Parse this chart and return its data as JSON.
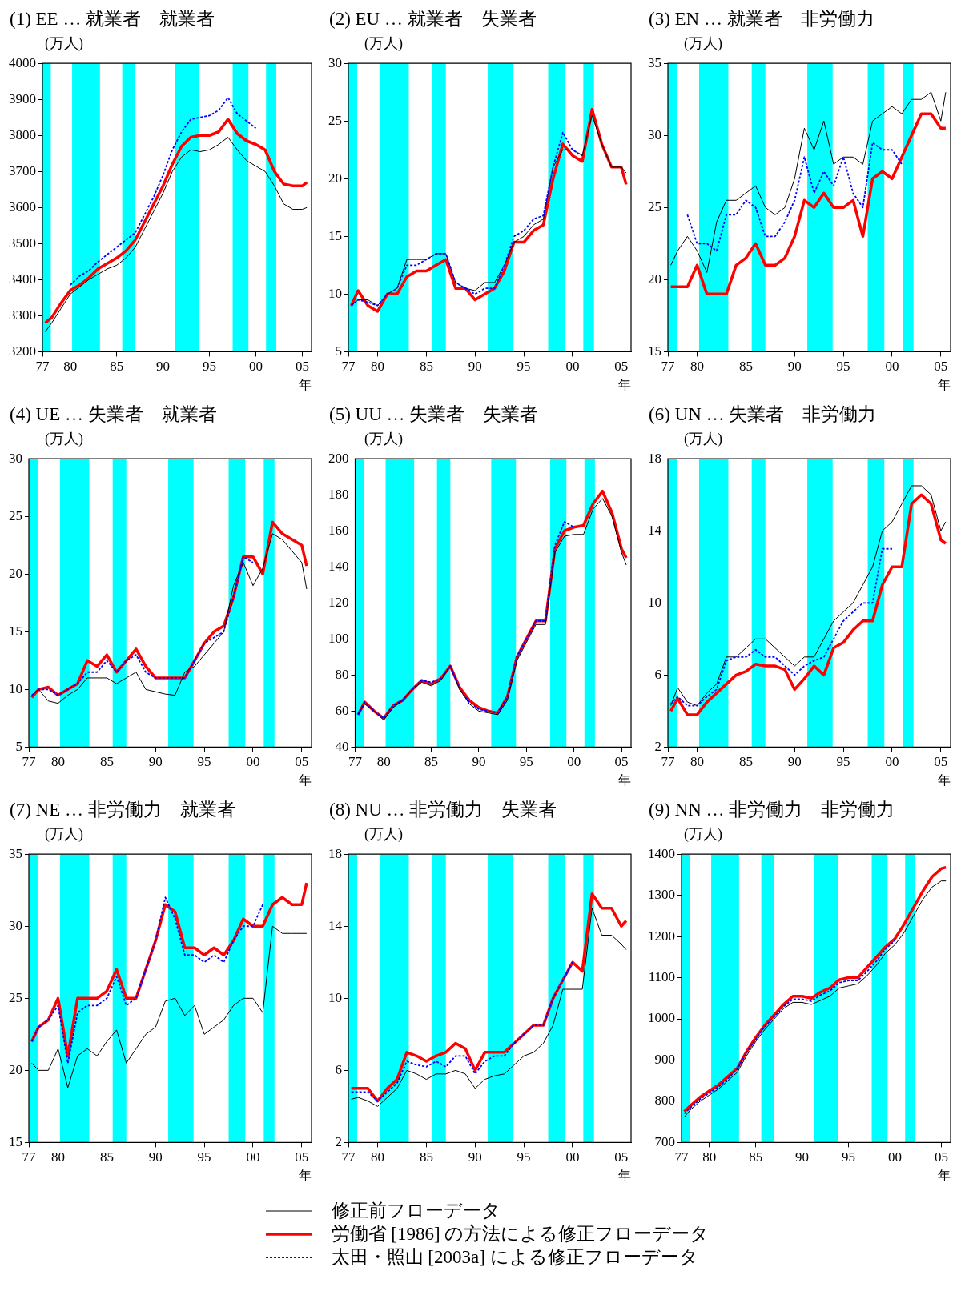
{
  "chart_data": [
    {
      "type": "line",
      "title": "(1) EE … 就業者　就業者",
      "ylabel": "(万人)",
      "xlabel": "年",
      "marker": "none",
      "legend": "bottom",
      "x": [
        1977.3,
        1978,
        1979,
        1980,
        1981,
        1982,
        1983,
        1984,
        1985,
        1986,
        1987,
        1988,
        1989,
        1990,
        1991,
        1992,
        1993,
        1994,
        1995,
        1996,
        1997,
        1998,
        1999,
        2000,
        2001,
        2002,
        2003,
        2004,
        2005,
        2005.5
      ],
      "xlim": [
        1977,
        2006
      ],
      "xticks": [
        {
          "value": 1977,
          "label": "77"
        },
        {
          "value": 1980,
          "label": "80"
        },
        {
          "value": 1985,
          "label": "85"
        },
        {
          "value": 1990,
          "label": "90"
        },
        {
          "value": 1995,
          "label": "95"
        },
        {
          "value": 2000,
          "label": "00"
        },
        {
          "value": 2005,
          "label": "05"
        }
      ],
      "ylim": [
        3200,
        4000
      ],
      "yticks": [
        3200,
        3300,
        3400,
        3500,
        3600,
        3700,
        3800,
        3900,
        4000
      ],
      "bands": [
        {
          "axis": "x",
          "from": 1977,
          "to": 1977.9,
          "color": "#00ffff"
        },
        {
          "axis": "x",
          "from": 1980.2,
          "to": 1983.2,
          "color": "#00ffff"
        },
        {
          "axis": "x",
          "from": 1985.6,
          "to": 1987,
          "color": "#00ffff"
        },
        {
          "axis": "x",
          "from": 1991.3,
          "to": 1993.9,
          "color": "#00ffff"
        },
        {
          "axis": "x",
          "from": 1997.5,
          "to": 1999.2,
          "color": "#00ffff"
        },
        {
          "axis": "x",
          "from": 2001.1,
          "to": 2002.2,
          "color": "#00ffff"
        }
      ],
      "series": [
        {
          "name": "修正前フローデータ",
          "color": "#000000",
          "line_style": "solid",
          "values": [
            3255,
            3280,
            3320,
            3360,
            3380,
            3400,
            3415,
            3430,
            3440,
            3460,
            3490,
            3540,
            3590,
            3640,
            3700,
            3740,
            3760,
            3755,
            3760,
            3775,
            3795,
            3760,
            3730,
            3715,
            3700,
            3660,
            3610,
            3595,
            3595,
            3600
          ]
        },
        {
          "name": "労働省 [1986] の方法による修正フローデータ",
          "color": "#ff0000",
          "line_style": "solid",
          "values": [
            3280,
            3295,
            3335,
            3370,
            3385,
            3405,
            3430,
            3445,
            3460,
            3480,
            3510,
            3560,
            3610,
            3660,
            3720,
            3770,
            3795,
            3800,
            3800,
            3810,
            3845,
            3805,
            3785,
            3775,
            3760,
            3700,
            3665,
            3660,
            3660,
            3670
          ]
        },
        {
          "name": "太田・照山 [2003a] による修正フローデータ",
          "color": "#0000ff",
          "line_style": "dashed",
          "values": [
            null,
            null,
            null,
            3385,
            3410,
            3425,
            3450,
            3470,
            3490,
            3510,
            3530,
            3580,
            3630,
            3690,
            3760,
            3810,
            3845,
            3850,
            3855,
            3870,
            3905,
            3860,
            3840,
            3820,
            null,
            null,
            null,
            null,
            null,
            null
          ]
        }
      ]
    },
    {
      "type": "line",
      "title": "(2) EU … 就業者　失業者",
      "ylabel": "(万人)",
      "xlabel": "年",
      "marker": "none",
      "x": [
        1977.3,
        1978,
        1979,
        1980,
        1981,
        1982,
        1983,
        1984,
        1985,
        1986,
        1987,
        1988,
        1989,
        1990,
        1991,
        1992,
        1993,
        1994,
        1995,
        1996,
        1997,
        1998,
        1999,
        2000,
        2001,
        2002,
        2003,
        2004,
        2005,
        2005.5
      ],
      "xlim": [
        1977,
        2006
      ],
      "xticks": [
        {
          "value": 1977,
          "label": "77"
        },
        {
          "value": 1980,
          "label": "80"
        },
        {
          "value": 1985,
          "label": "85"
        },
        {
          "value": 1990,
          "label": "90"
        },
        {
          "value": 1995,
          "label": "95"
        },
        {
          "value": 2000,
          "label": "00"
        },
        {
          "value": 2005,
          "label": "05"
        }
      ],
      "ylim": [
        5,
        30
      ],
      "yticks": [
        5,
        10,
        15,
        20,
        25,
        30
      ],
      "bands": [
        {
          "axis": "x",
          "from": 1977,
          "to": 1977.9,
          "color": "#00ffff"
        },
        {
          "axis": "x",
          "from": 1980.2,
          "to": 1983.2,
          "color": "#00ffff"
        },
        {
          "axis": "x",
          "from": 1985.6,
          "to": 1987,
          "color": "#00ffff"
        },
        {
          "axis": "x",
          "from": 1991.3,
          "to": 1993.9,
          "color": "#00ffff"
        },
        {
          "axis": "x",
          "from": 1997.5,
          "to": 1999.2,
          "color": "#00ffff"
        },
        {
          "axis": "x",
          "from": 2001.1,
          "to": 2002.2,
          "color": "#00ffff"
        }
      ],
      "series": [
        {
          "color": "#000000",
          "line_style": "solid",
          "values": [
            9,
            9.5,
            9.5,
            9,
            10,
            10.5,
            13,
            13,
            13,
            13.5,
            13.5,
            11,
            10.5,
            10.3,
            11,
            11,
            12.5,
            14.5,
            15,
            16,
            16.5,
            21,
            22.5,
            22.5,
            22,
            25.5,
            23,
            21,
            21,
            20.5
          ]
        },
        {
          "color": "#ff0000",
          "line_style": "solid",
          "values": [
            9,
            10.3,
            9,
            8.5,
            10,
            10,
            11.5,
            12,
            12,
            12.5,
            13,
            10.5,
            10.5,
            9.5,
            10,
            10.5,
            12,
            14.5,
            14.5,
            15.5,
            16,
            20,
            23,
            22,
            21.5,
            26,
            23,
            21,
            21,
            19.5
          ]
        },
        {
          "color": "#0000ff",
          "line_style": "dashed",
          "values": [
            9,
            9.5,
            9.3,
            9,
            10,
            10.5,
            12.5,
            12.5,
            13,
            13.5,
            13.5,
            11,
            10.5,
            10,
            10.5,
            10.5,
            12.5,
            15,
            15.5,
            16.5,
            16.8,
            21,
            24,
            22.5,
            22,
            null,
            null,
            null,
            null,
            null
          ]
        }
      ]
    },
    {
      "type": "line",
      "title": "(3) EN … 就業者　非労働力",
      "ylabel": "(万人)",
      "xlabel": "年",
      "marker": "none",
      "x": [
        1977.3,
        1978,
        1979,
        1980,
        1981,
        1982,
        1983,
        1984,
        1985,
        1986,
        1987,
        1988,
        1989,
        1990,
        1991,
        1992,
        1993,
        1994,
        1995,
        1996,
        1997,
        1998,
        1999,
        2000,
        2001,
        2002,
        2003,
        2004,
        2005,
        2005.5
      ],
      "xlim": [
        1977,
        2006
      ],
      "xticks": [
        {
          "value": 1977,
          "label": "77"
        },
        {
          "value": 1980,
          "label": "80"
        },
        {
          "value": 1985,
          "label": "85"
        },
        {
          "value": 1990,
          "label": "90"
        },
        {
          "value": 1995,
          "label": "95"
        },
        {
          "value": 2000,
          "label": "00"
        },
        {
          "value": 2005,
          "label": "05"
        }
      ],
      "ylim": [
        15,
        35
      ],
      "yticks": [
        15,
        20,
        25,
        30,
        35
      ],
      "bands": [
        {
          "axis": "x",
          "from": 1977,
          "to": 1977.9,
          "color": "#00ffff"
        },
        {
          "axis": "x",
          "from": 1980.2,
          "to": 1983.2,
          "color": "#00ffff"
        },
        {
          "axis": "x",
          "from": 1985.6,
          "to": 1987,
          "color": "#00ffff"
        },
        {
          "axis": "x",
          "from": 1991.3,
          "to": 1993.9,
          "color": "#00ffff"
        },
        {
          "axis": "x",
          "from": 1997.5,
          "to": 1999.2,
          "color": "#00ffff"
        },
        {
          "axis": "x",
          "from": 2001.1,
          "to": 2002.2,
          "color": "#00ffff"
        }
      ],
      "series": [
        {
          "color": "#000000",
          "line_style": "solid",
          "values": [
            21,
            22,
            23,
            22,
            20.5,
            24,
            25.5,
            25.5,
            26,
            26.5,
            25,
            24.5,
            25,
            27,
            30.5,
            29,
            31,
            28,
            28.5,
            28.5,
            28,
            31,
            31.5,
            32,
            31.5,
            32.5,
            32.5,
            33,
            31,
            33
          ]
        },
        {
          "color": "#ff0000",
          "line_style": "solid",
          "values": [
            19.5,
            19.5,
            19.5,
            21,
            19,
            19,
            19,
            21,
            21.5,
            22.5,
            21,
            21,
            21.5,
            23,
            25.5,
            25,
            26,
            25,
            25,
            25.5,
            23,
            27,
            27.5,
            27,
            28.5,
            30,
            31.5,
            31.5,
            30.5,
            30.5
          ]
        },
        {
          "color": "#0000ff",
          "line_style": "dashed",
          "values": [
            null,
            null,
            24.5,
            22.5,
            22.5,
            22,
            24.5,
            24.5,
            25.5,
            25,
            23,
            23,
            24,
            25.5,
            28.5,
            26,
            27.5,
            26.5,
            28.5,
            26,
            25,
            29.5,
            29,
            29,
            28,
            null,
            null,
            null,
            null,
            null
          ]
        }
      ]
    },
    {
      "type": "line",
      "title": "(4) UE … 失業者　就業者",
      "ylabel": "(万人)",
      "xlabel": "年",
      "marker": "none",
      "x": [
        1977.3,
        1978,
        1979,
        1980,
        1981,
        1982,
        1983,
        1984,
        1985,
        1986,
        1987,
        1988,
        1989,
        1990,
        1991,
        1992,
        1993,
        1994,
        1995,
        1996,
        1997,
        1998,
        1999,
        2000,
        2001,
        2002,
        2003,
        2004,
        2005,
        2005.5
      ],
      "xlim": [
        1977,
        2006
      ],
      "xticks": [
        {
          "value": 1977,
          "label": "77"
        },
        {
          "value": 1980,
          "label": "80"
        },
        {
          "value": 1985,
          "label": "85"
        },
        {
          "value": 1990,
          "label": "90"
        },
        {
          "value": 1995,
          "label": "95"
        },
        {
          "value": 2000,
          "label": "00"
        },
        {
          "value": 2005,
          "label": "05"
        }
      ],
      "ylim": [
        5,
        30
      ],
      "yticks": [
        5,
        10,
        15,
        20,
        25,
        30
      ],
      "bands": [
        {
          "axis": "x",
          "from": 1977,
          "to": 1977.9,
          "color": "#00ffff"
        },
        {
          "axis": "x",
          "from": 1980.2,
          "to": 1983.2,
          "color": "#00ffff"
        },
        {
          "axis": "x",
          "from": 1985.6,
          "to": 1987,
          "color": "#00ffff"
        },
        {
          "axis": "x",
          "from": 1991.3,
          "to": 1993.9,
          "color": "#00ffff"
        },
        {
          "axis": "x",
          "from": 1997.5,
          "to": 1999.2,
          "color": "#00ffff"
        },
        {
          "axis": "x",
          "from": 2001.1,
          "to": 2002.2,
          "color": "#00ffff"
        }
      ],
      "series": [
        {
          "color": "#000000",
          "line_style": "solid",
          "values": [
            9.5,
            10,
            9,
            8.8,
            9.5,
            10,
            11,
            11,
            11,
            10.5,
            11,
            11.5,
            10,
            9.8,
            9.6,
            9.5,
            11.5,
            12,
            13,
            14,
            15,
            19,
            21,
            19,
            20.5,
            23.5,
            23,
            22,
            21,
            18.7
          ]
        },
        {
          "color": "#ff0000",
          "line_style": "solid",
          "values": [
            9.3,
            10,
            10.2,
            9.5,
            10,
            10.5,
            12.5,
            12,
            13,
            11.5,
            12.5,
            13.5,
            12,
            11,
            11,
            11,
            11,
            12.5,
            14,
            15,
            15.5,
            18,
            21.5,
            21.5,
            20,
            24.5,
            23.5,
            23,
            22.5,
            20.7
          ]
        },
        {
          "color": "#0000ff",
          "line_style": "dashed",
          "values": [
            9.5,
            10,
            10,
            9.5,
            10,
            10.5,
            11.5,
            11.5,
            12.5,
            11.5,
            12.5,
            13,
            11.5,
            11,
            11,
            11,
            11,
            12.5,
            14,
            14.5,
            15,
            18,
            21.5,
            21,
            null,
            null,
            null,
            null,
            null,
            null
          ]
        }
      ]
    },
    {
      "type": "line",
      "title": "(5) UU … 失業者　失業者",
      "ylabel": "(万人)",
      "xlabel": "年",
      "marker": "none",
      "x": [
        1977.3,
        1978,
        1979,
        1980,
        1981,
        1982,
        1983,
        1984,
        1985,
        1986,
        1987,
        1988,
        1989,
        1990,
        1991,
        1992,
        1993,
        1994,
        1995,
        1996,
        1997,
        1998,
        1999,
        2000,
        2001,
        2002,
        2003,
        2004,
        2005,
        2005.5
      ],
      "xlim": [
        1977,
        2006
      ],
      "xticks": [
        {
          "value": 1977,
          "label": "77"
        },
        {
          "value": 1980,
          "label": "80"
        },
        {
          "value": 1985,
          "label": "85"
        },
        {
          "value": 1990,
          "label": "90"
        },
        {
          "value": 1995,
          "label": "95"
        },
        {
          "value": 2000,
          "label": "00"
        },
        {
          "value": 2005,
          "label": "05"
        }
      ],
      "ylim": [
        40,
        200
      ],
      "yticks": [
        40,
        60,
        80,
        100,
        120,
        140,
        160,
        180,
        200
      ],
      "bands": [
        {
          "axis": "x",
          "from": 1977,
          "to": 1977.9,
          "color": "#00ffff"
        },
        {
          "axis": "x",
          "from": 1980.2,
          "to": 1983.2,
          "color": "#00ffff"
        },
        {
          "axis": "x",
          "from": 1985.6,
          "to": 1987,
          "color": "#00ffff"
        },
        {
          "axis": "x",
          "from": 1991.3,
          "to": 1993.9,
          "color": "#00ffff"
        },
        {
          "axis": "x",
          "from": 1997.5,
          "to": 1999.2,
          "color": "#00ffff"
        },
        {
          "axis": "x",
          "from": 2001.1,
          "to": 2002.2,
          "color": "#00ffff"
        }
      ],
      "series": [
        {
          "color": "#000000",
          "line_style": "solid",
          "values": [
            58,
            64,
            60,
            55,
            62,
            66,
            72,
            76,
            74,
            77,
            85,
            72,
            64,
            60,
            59,
            58,
            66,
            88,
            98,
            108,
            108,
            148,
            157,
            158,
            158,
            172,
            178,
            168,
            148,
            141
          ]
        },
        {
          "color": "#ff0000",
          "line_style": "solid",
          "values": [
            58,
            65,
            60,
            56,
            63,
            66,
            72,
            77,
            75,
            78,
            85,
            73,
            66,
            62,
            60,
            59,
            68,
            90,
            100,
            110,
            110,
            150,
            160,
            162,
            163,
            175,
            182,
            170,
            150,
            145
          ]
        },
        {
          "color": "#0000ff",
          "line_style": "dashed",
          "values": [
            58,
            65,
            60,
            56,
            63,
            66,
            72,
            77,
            76,
            78,
            85,
            72,
            65,
            61,
            60,
            59,
            68,
            90,
            100,
            110,
            110,
            152,
            165,
            162,
            null,
            null,
            null,
            null,
            null,
            null
          ]
        }
      ]
    },
    {
      "type": "line",
      "title": "(6) UN … 失業者　非労働力",
      "ylabel": "(万人)",
      "xlabel": "年",
      "marker": "none",
      "x": [
        1977.3,
        1978,
        1979,
        1980,
        1981,
        1982,
        1983,
        1984,
        1985,
        1986,
        1987,
        1988,
        1989,
        1990,
        1991,
        1992,
        1993,
        1994,
        1995,
        1996,
        1997,
        1998,
        1999,
        2000,
        2001,
        2002,
        2003,
        2004,
        2005,
        2005.5
      ],
      "xlim": [
        1977,
        2006
      ],
      "xticks": [
        {
          "value": 1977,
          "label": "77"
        },
        {
          "value": 1980,
          "label": "80"
        },
        {
          "value": 1985,
          "label": "85"
        },
        {
          "value": 1990,
          "label": "90"
        },
        {
          "value": 1995,
          "label": "95"
        },
        {
          "value": 2000,
          "label": "00"
        },
        {
          "value": 2005,
          "label": "05"
        }
      ],
      "ylim": [
        2,
        18
      ],
      "yticks": [
        2,
        6,
        10,
        14,
        18
      ],
      "bands": [
        {
          "axis": "x",
          "from": 1977,
          "to": 1977.9,
          "color": "#00ffff"
        },
        {
          "axis": "x",
          "from": 1980.2,
          "to": 1983.2,
          "color": "#00ffff"
        },
        {
          "axis": "x",
          "from": 1985.6,
          "to": 1987,
          "color": "#00ffff"
        },
        {
          "axis": "x",
          "from": 1991.3,
          "to": 1993.9,
          "color": "#00ffff"
        },
        {
          "axis": "x",
          "from": 1997.5,
          "to": 1999.2,
          "color": "#00ffff"
        },
        {
          "axis": "x",
          "from": 2001.1,
          "to": 2002.2,
          "color": "#00ffff"
        }
      ],
      "series": [
        {
          "color": "#000000",
          "line_style": "solid",
          "values": [
            4.3,
            5.3,
            4.5,
            4.3,
            5,
            5.5,
            7,
            7,
            7.5,
            8,
            8,
            7.5,
            7,
            6.5,
            7,
            7,
            8,
            9,
            9.5,
            10,
            11,
            12,
            14,
            14.5,
            15.5,
            16.5,
            16.5,
            16,
            14,
            14.5
          ]
        },
        {
          "color": "#ff0000",
          "line_style": "solid",
          "values": [
            4,
            4.7,
            3.8,
            3.8,
            4.5,
            5,
            5.5,
            6,
            6.2,
            6.6,
            6.5,
            6.5,
            6.3,
            5.2,
            5.8,
            6.5,
            6,
            7.5,
            7.8,
            8.5,
            9,
            9,
            11,
            12,
            12,
            15.5,
            16,
            15.5,
            13.5,
            13.3
          ]
        },
        {
          "color": "#0000ff",
          "line_style": "dashed",
          "values": [
            4.4,
            4.8,
            4.3,
            4.3,
            4.8,
            5.2,
            6.8,
            7,
            7,
            7.4,
            7,
            7,
            6.5,
            6,
            6.5,
            6.8,
            7,
            8,
            9,
            9.5,
            10,
            10,
            13,
            13,
            null,
            null,
            null,
            null,
            null,
            null
          ]
        }
      ]
    },
    {
      "type": "line",
      "title": "(7) NE … 非労働力　就業者",
      "ylabel": "(万人)",
      "xlabel": "年",
      "marker": "none",
      "x": [
        1977.3,
        1978,
        1979,
        1980,
        1981,
        1982,
        1983,
        1984,
        1985,
        1986,
        1987,
        1988,
        1989,
        1990,
        1991,
        1992,
        1993,
        1994,
        1995,
        1996,
        1997,
        1998,
        1999,
        2000,
        2001,
        2002,
        2003,
        2004,
        2005,
        2005.5
      ],
      "xlim": [
        1977,
        2006
      ],
      "xticks": [
        {
          "value": 1977,
          "label": "77"
        },
        {
          "value": 1980,
          "label": "80"
        },
        {
          "value": 1985,
          "label": "85"
        },
        {
          "value": 1990,
          "label": "90"
        },
        {
          "value": 1995,
          "label": "95"
        },
        {
          "value": 2000,
          "label": "00"
        },
        {
          "value": 2005,
          "label": "05"
        }
      ],
      "ylim": [
        15,
        35
      ],
      "yticks": [
        15,
        20,
        25,
        30,
        35
      ],
      "bands": [
        {
          "axis": "x",
          "from": 1977,
          "to": 1977.9,
          "color": "#00ffff"
        },
        {
          "axis": "x",
          "from": 1980.2,
          "to": 1983.2,
          "color": "#00ffff"
        },
        {
          "axis": "x",
          "from": 1985.6,
          "to": 1987,
          "color": "#00ffff"
        },
        {
          "axis": "x",
          "from": 1991.3,
          "to": 1993.9,
          "color": "#00ffff"
        },
        {
          "axis": "x",
          "from": 1997.5,
          "to": 1999.2,
          "color": "#00ffff"
        },
        {
          "axis": "x",
          "from": 2001.1,
          "to": 2002.2,
          "color": "#00ffff"
        }
      ],
      "series": [
        {
          "color": "#000000",
          "line_style": "solid",
          "values": [
            20.5,
            20,
            20,
            21.5,
            18.8,
            21,
            21.5,
            21,
            22,
            22.8,
            20.5,
            21.5,
            22.5,
            23,
            24.8,
            25,
            23.8,
            24.5,
            22.5,
            23,
            23.5,
            24.5,
            25,
            25,
            24,
            30,
            29.5,
            29.5,
            29.5,
            29.5
          ]
        },
        {
          "color": "#ff0000",
          "line_style": "solid",
          "values": [
            22,
            23,
            23.5,
            25,
            21,
            25,
            25,
            25,
            25.5,
            27,
            25,
            25,
            27,
            29,
            31.5,
            31,
            28.5,
            28.5,
            28,
            28.5,
            28,
            29,
            30.5,
            30,
            30,
            31.5,
            32,
            31.5,
            31.5,
            33
          ]
        },
        {
          "color": "#0000ff",
          "line_style": "dashed",
          "values": [
            22,
            23,
            23.5,
            24.5,
            20.5,
            24,
            24.5,
            24.5,
            25,
            26.5,
            24.5,
            25,
            27,
            29,
            32,
            30.5,
            28,
            28,
            27.5,
            28,
            27.5,
            29,
            30,
            30,
            31.5,
            null,
            null,
            null,
            null,
            null
          ]
        }
      ]
    },
    {
      "type": "line",
      "title": "(8) NU … 非労働力　失業者",
      "ylabel": "(万人)",
      "xlabel": "年",
      "marker": "none",
      "x": [
        1977.3,
        1978,
        1979,
        1980,
        1981,
        1982,
        1983,
        1984,
        1985,
        1986,
        1987,
        1988,
        1989,
        1990,
        1991,
        1992,
        1993,
        1994,
        1995,
        1996,
        1997,
        1998,
        1999,
        2000,
        2001,
        2002,
        2003,
        2004,
        2005,
        2005.5
      ],
      "xlim": [
        1977,
        2006
      ],
      "xticks": [
        {
          "value": 1977,
          "label": "77"
        },
        {
          "value": 1980,
          "label": "80"
        },
        {
          "value": 1985,
          "label": "85"
        },
        {
          "value": 1990,
          "label": "90"
        },
        {
          "value": 1995,
          "label": "95"
        },
        {
          "value": 2000,
          "label": "00"
        },
        {
          "value": 2005,
          "label": "05"
        }
      ],
      "ylim": [
        2,
        18
      ],
      "yticks": [
        2,
        6,
        10,
        14,
        18
      ],
      "bands": [
        {
          "axis": "x",
          "from": 1977,
          "to": 1977.9,
          "color": "#00ffff"
        },
        {
          "axis": "x",
          "from": 1980.2,
          "to": 1983.2,
          "color": "#00ffff"
        },
        {
          "axis": "x",
          "from": 1985.6,
          "to": 1987,
          "color": "#00ffff"
        },
        {
          "axis": "x",
          "from": 1991.3,
          "to": 1993.9,
          "color": "#00ffff"
        },
        {
          "axis": "x",
          "from": 1997.5,
          "to": 1999.2,
          "color": "#00ffff"
        },
        {
          "axis": "x",
          "from": 2001.1,
          "to": 2002.2,
          "color": "#00ffff"
        }
      ],
      "series": [
        {
          "color": "#000000",
          "line_style": "solid",
          "values": [
            4.4,
            4.5,
            4.3,
            4,
            4.5,
            5,
            6,
            5.8,
            5.5,
            5.8,
            5.8,
            6,
            5.8,
            5,
            5.5,
            5.7,
            5.8,
            6.3,
            6.8,
            7,
            7.5,
            8.5,
            10.5,
            10.5,
            10.5,
            15,
            13.5,
            13.5,
            13,
            12.7
          ]
        },
        {
          "color": "#ff0000",
          "line_style": "solid",
          "values": [
            5,
            5,
            5,
            4.3,
            5,
            5.5,
            7,
            6.8,
            6.5,
            6.8,
            7,
            7.5,
            7.2,
            6,
            7,
            7,
            7,
            7.5,
            8,
            8.5,
            8.5,
            10,
            11,
            12,
            11.5,
            15.8,
            15,
            15,
            14,
            14.3
          ]
        },
        {
          "color": "#0000ff",
          "line_style": "dashed",
          "values": [
            4.8,
            4.8,
            4.8,
            4.3,
            4.8,
            5.3,
            6.5,
            6.3,
            6.2,
            6.5,
            6.2,
            6.8,
            6.8,
            5.8,
            6.5,
            6.8,
            6.8,
            7.5,
            8,
            8.5,
            8.5,
            10,
            11,
            12,
            null,
            null,
            null,
            null,
            null,
            null
          ]
        }
      ]
    },
    {
      "type": "line",
      "title": "(9) NN … 非労働力　非労働力",
      "ylabel": "(万人)",
      "xlabel": "年",
      "marker": "none",
      "x": [
        1977.3,
        1978,
        1979,
        1980,
        1981,
        1982,
        1983,
        1984,
        1985,
        1986,
        1987,
        1988,
        1989,
        1990,
        1991,
        1992,
        1993,
        1994,
        1995,
        1996,
        1997,
        1998,
        1999,
        2000,
        2001,
        2002,
        2003,
        2004,
        2005,
        2005.5
      ],
      "xlim": [
        1977,
        2006
      ],
      "xticks": [
        {
          "value": 1977,
          "label": "77"
        },
        {
          "value": 1980,
          "label": "80"
        },
        {
          "value": 1985,
          "label": "85"
        },
        {
          "value": 1990,
          "label": "90"
        },
        {
          "value": 1995,
          "label": "95"
        },
        {
          "value": 2000,
          "label": "00"
        },
        {
          "value": 2005,
          "label": "05"
        }
      ],
      "ylim": [
        700,
        1400
      ],
      "yticks": [
        700,
        800,
        900,
        1000,
        1100,
        1200,
        1300,
        1400
      ],
      "bands": [
        {
          "axis": "x",
          "from": 1977,
          "to": 1977.9,
          "color": "#00ffff"
        },
        {
          "axis": "x",
          "from": 1980.2,
          "to": 1983.2,
          "color": "#00ffff"
        },
        {
          "axis": "x",
          "from": 1985.6,
          "to": 1987,
          "color": "#00ffff"
        },
        {
          "axis": "x",
          "from": 1991.3,
          "to": 1993.9,
          "color": "#00ffff"
        },
        {
          "axis": "x",
          "from": 1997.5,
          "to": 1999.2,
          "color": "#00ffff"
        },
        {
          "axis": "x",
          "from": 2001.1,
          "to": 2002.2,
          "color": "#00ffff"
        }
      ],
      "series": [
        {
          "color": "#000000",
          "line_style": "solid",
          "values": [
            762,
            780,
            800,
            815,
            830,
            850,
            870,
            910,
            945,
            975,
            1000,
            1025,
            1040,
            1040,
            1035,
            1045,
            1055,
            1075,
            1080,
            1085,
            1105,
            1130,
            1160,
            1180,
            1210,
            1250,
            1290,
            1320,
            1335,
            1335
          ]
        },
        {
          "color": "#ff0000",
          "line_style": "solid",
          "values": [
            775,
            790,
            810,
            825,
            840,
            860,
            880,
            920,
            955,
            985,
            1010,
            1035,
            1055,
            1055,
            1050,
            1065,
            1075,
            1095,
            1100,
            1100,
            1125,
            1150,
            1175,
            1195,
            1230,
            1270,
            1310,
            1345,
            1365,
            1368
          ]
        },
        {
          "color": "#0000ff",
          "line_style": "dashed",
          "values": [
            770,
            785,
            805,
            820,
            835,
            855,
            878,
            918,
            950,
            982,
            1005,
            1030,
            1048,
            1048,
            1043,
            1058,
            1068,
            1088,
            1093,
            1093,
            1115,
            1140,
            1170,
            1190,
            null,
            null,
            null,
            null,
            null,
            null
          ]
        }
      ]
    }
  ]
}
